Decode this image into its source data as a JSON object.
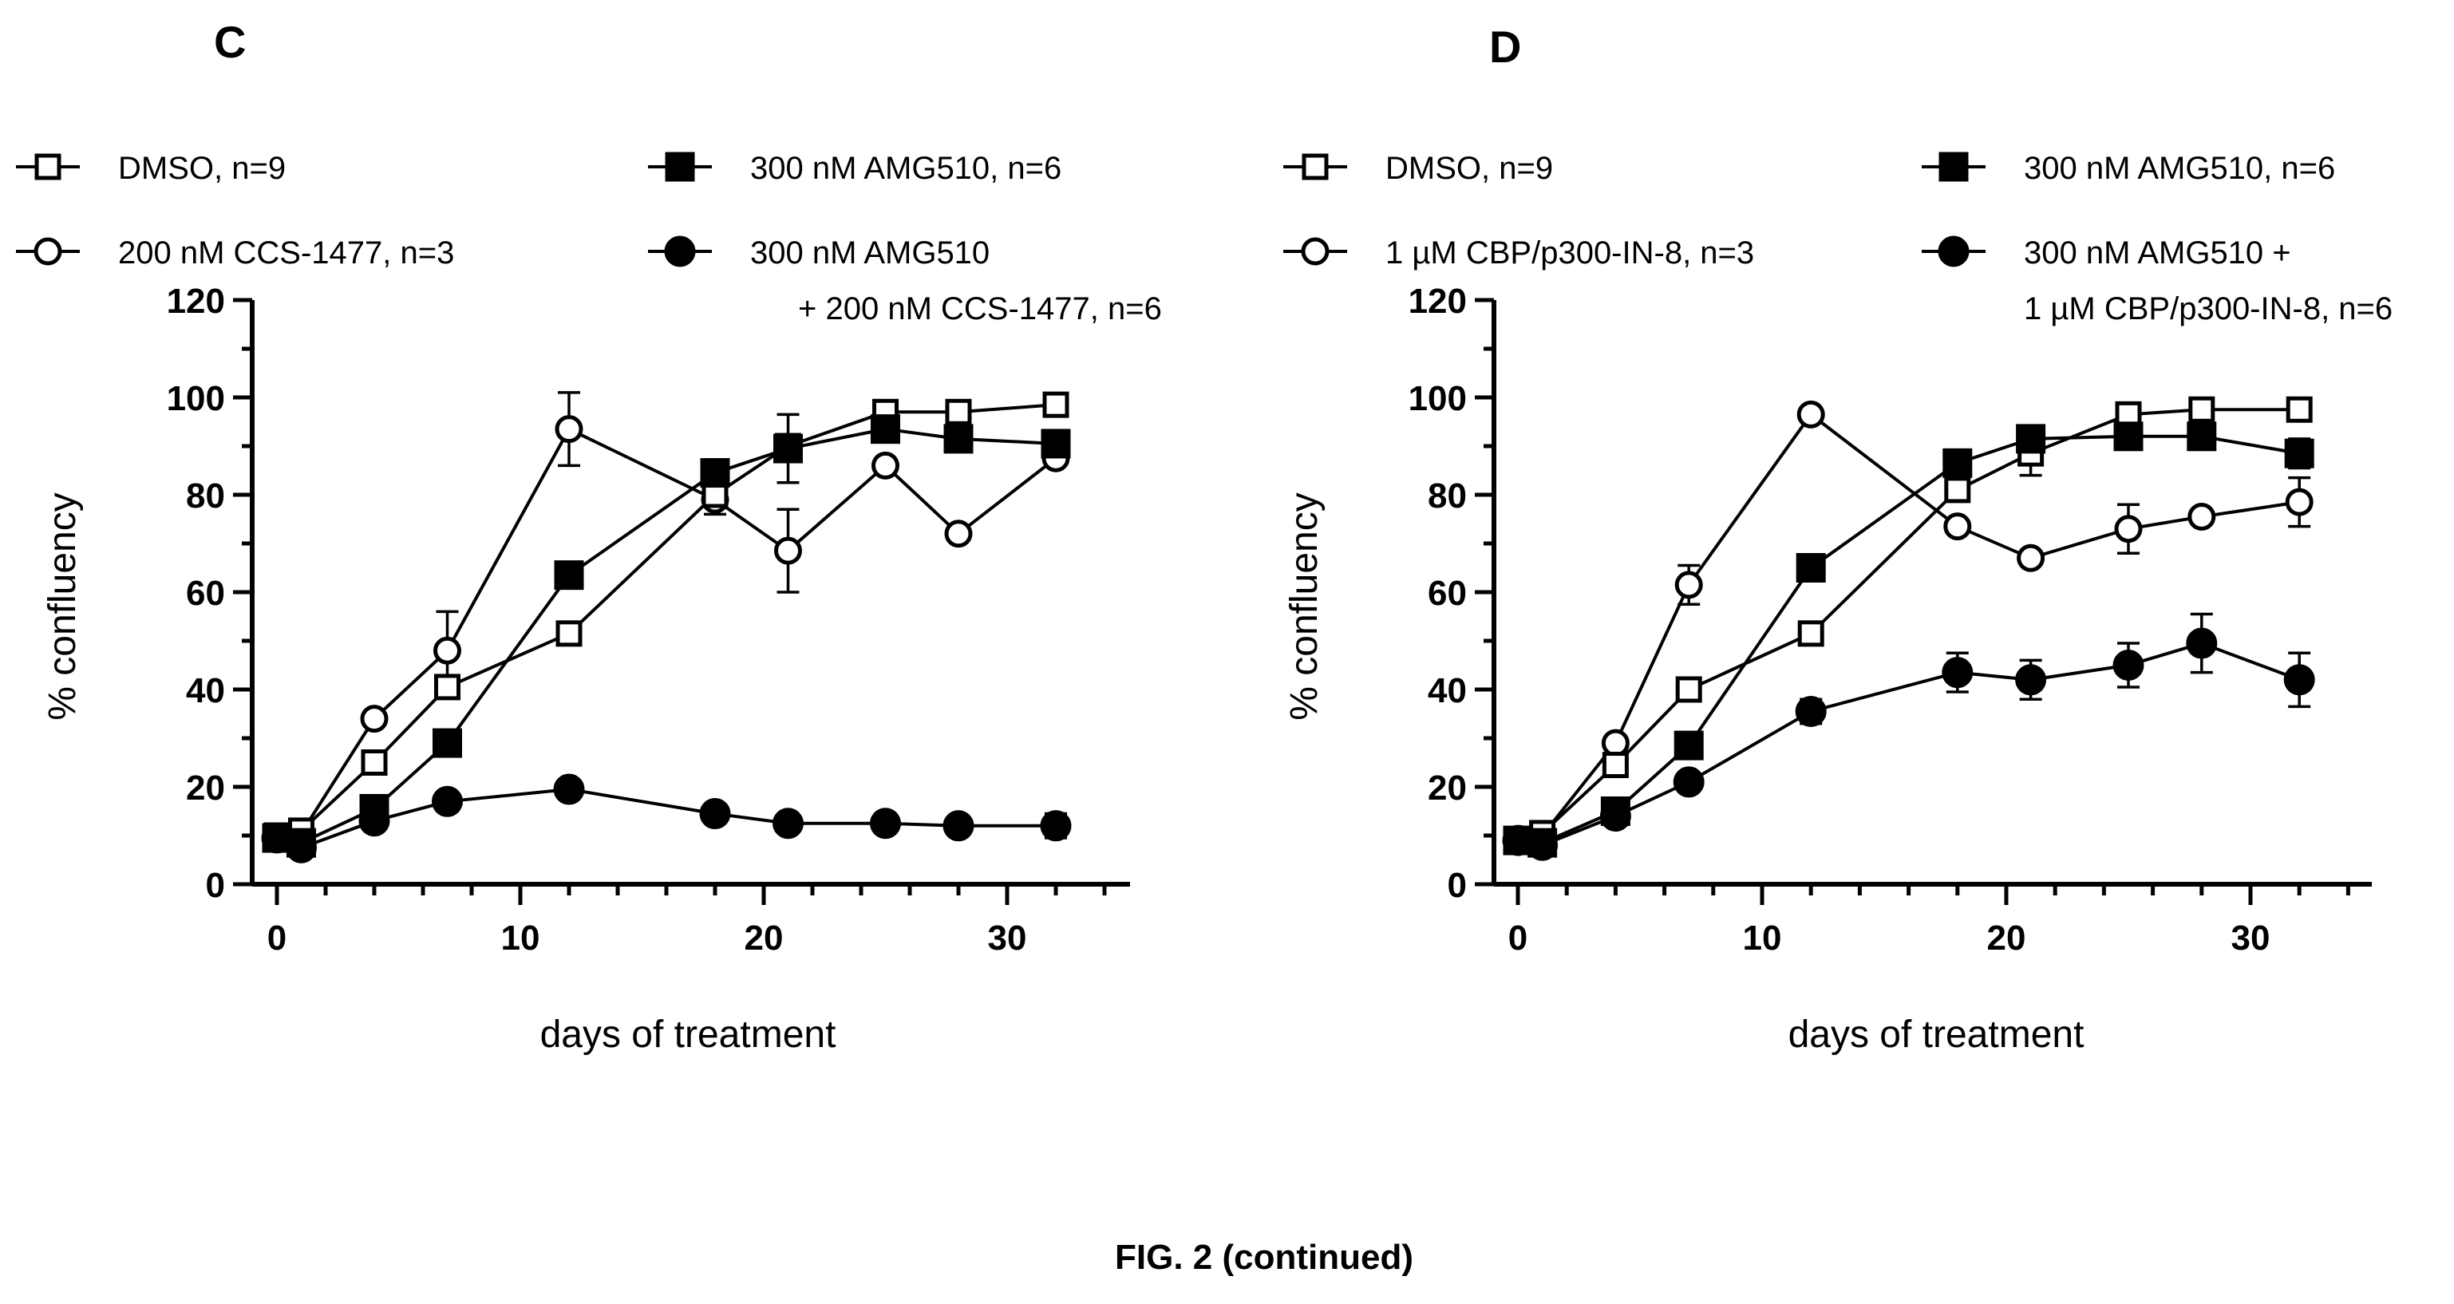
{
  "caption": "FIG. 2 (continued)",
  "chart_data": [
    {
      "panel": "C",
      "type": "line",
      "xlabel": "days of treatment",
      "ylabel": "% confluency",
      "xlim": [
        -1,
        35
      ],
      "ylim": [
        0,
        120
      ],
      "xticks": [
        0,
        10,
        20,
        30
      ],
      "yticks": [
        0,
        20,
        40,
        60,
        80,
        100,
        120
      ],
      "grid": false,
      "legend_position": "top",
      "x": [
        0,
        1,
        4,
        7,
        12,
        18,
        21,
        25,
        28,
        32
      ],
      "series": [
        {
          "name": "DMSO, n=9",
          "marker": "open-square",
          "y": [
            10,
            11,
            25,
            40.5,
            51.5,
            80,
            90,
            97,
            97,
            98.5
          ],
          "err": [
            0,
            0,
            0,
            0,
            0,
            0,
            0,
            0,
            0,
            0
          ]
        },
        {
          "name": "200 nM CCS-1477, n=3",
          "marker": "open-circle",
          "y": [
            9.5,
            10.5,
            34,
            48,
            93.5,
            79,
            68.5,
            86,
            72,
            87.5
          ],
          "err": [
            0,
            0,
            0,
            8,
            7.5,
            3,
            8.5,
            0,
            0,
            0
          ]
        },
        {
          "name": "300 nM AMG510, n=6",
          "marker": "filled-square",
          "y": [
            9.5,
            8.5,
            15.5,
            29,
            63.5,
            84.5,
            89.5,
            93.5,
            91.5,
            90.5
          ],
          "err": [
            0,
            0,
            0,
            0,
            0,
            0,
            7,
            0,
            0,
            0
          ]
        },
        {
          "name": "300 nM AMG510 + 200 nM CCS-1477, n=6",
          "marker": "filled-circle",
          "y": [
            9.5,
            7.5,
            13,
            17,
            19.5,
            14.5,
            12.5,
            12.5,
            12,
            12
          ],
          "err": [
            0,
            0,
            0,
            0,
            2,
            0,
            0,
            2,
            0,
            2.5
          ]
        }
      ]
    },
    {
      "panel": "D",
      "type": "line",
      "xlabel": "days of treatment",
      "ylabel": "% confluency",
      "xlim": [
        -1,
        35
      ],
      "ylim": [
        0,
        120
      ],
      "xticks": [
        0,
        10,
        20,
        30
      ],
      "yticks": [
        0,
        20,
        40,
        60,
        80,
        100,
        120
      ],
      "grid": false,
      "legend_position": "top",
      "x": [
        0,
        1,
        4,
        7,
        12,
        18,
        21,
        25,
        28,
        32
      ],
      "series": [
        {
          "name": "DMSO, n=9",
          "marker": "open-square",
          "y": [
            9,
            10.5,
            24.5,
            40,
            51.5,
            81,
            88.5,
            96.5,
            97.5,
            97.5
          ],
          "err": [
            0,
            0,
            0,
            0,
            0,
            0,
            4.5,
            0,
            0,
            0
          ]
        },
        {
          "name": "1 µM CBP/p300-IN-8, n=3",
          "marker": "open-circle",
          "y": [
            9,
            10,
            29,
            61.5,
            96.5,
            73.5,
            67,
            73,
            75.5,
            78.5
          ],
          "err": [
            0,
            0,
            0,
            4,
            0,
            0,
            0,
            5,
            0,
            5
          ]
        },
        {
          "name": "300 nM AMG510,  n=6",
          "marker": "filled-square",
          "y": [
            9,
            8.5,
            15,
            28.5,
            65,
            86.5,
            91.5,
            92,
            92,
            88.5
          ],
          "err": [
            0,
            0,
            0,
            0,
            0,
            0,
            0,
            0,
            0,
            3
          ]
        },
        {
          "name": "300 nM AMG510 + 1 µM CBP/p300-IN-8, n=6",
          "marker": "filled-circle",
          "y": [
            9,
            8,
            14,
            21,
            35.5,
            43.5,
            42,
            45,
            49.5,
            42
          ],
          "err": [
            0,
            0,
            0,
            0,
            2.5,
            4,
            4,
            4.5,
            6,
            5.5
          ]
        }
      ]
    }
  ],
  "legends": [
    {
      "panel": "C",
      "items": [
        {
          "line1": "DMSO, n=9",
          "line2": "",
          "marker": "open-square"
        },
        {
          "line1": "300 nM AMG510, n=6",
          "line2": "",
          "marker": "filled-square"
        },
        {
          "line1": "200 nM CCS-1477, n=3",
          "line2": "",
          "marker": "open-circle"
        },
        {
          "line1": "300 nM AMG510",
          "line2": "+ 200 nM CCS-1477, n=6",
          "marker": "filled-circle"
        }
      ]
    },
    {
      "panel": "D",
      "items": [
        {
          "line1": "DMSO, n=9",
          "line2": "",
          "marker": "open-square"
        },
        {
          "line1": "300 nM AMG510,  n=6",
          "line2": "",
          "marker": "filled-square"
        },
        {
          "line1": "1 µM CBP/p300-IN-8, n=3",
          "line2": "",
          "marker": "open-circle"
        },
        {
          "line1": "300 nM AMG510 +",
          "line2": "1 µM CBP/p300-IN-8, n=6",
          "marker": "filled-circle"
        }
      ]
    }
  ]
}
